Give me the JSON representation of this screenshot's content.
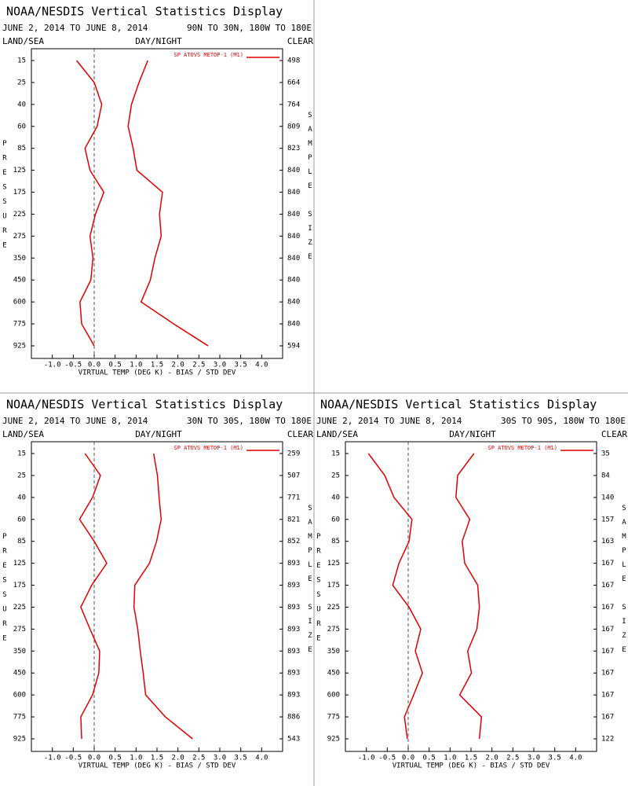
{
  "chart_data": [
    {
      "type": "line",
      "title": "NOAA/NESDIS Vertical Statistics Display",
      "subtitle": "JUNE 2, 2014 TO JUNE 8, 2014",
      "region": "90N TO 30N, 180W TO 180E",
      "land_sea": "LAND/SEA",
      "day_night": "DAY/NIGHT",
      "clear": "CLEAR",
      "y_label": "PRESSURE",
      "y2_label": "SAMPLE SIZE",
      "x_label": "VIRTUAL TEMP (DEG K) - BIAS / STD DEV",
      "categories": [
        15,
        25,
        40,
        60,
        85,
        125,
        175,
        225,
        275,
        350,
        450,
        600,
        775,
        925
      ],
      "sample_size": [
        498,
        664,
        764,
        809,
        823,
        840,
        840,
        840,
        840,
        840,
        840,
        840,
        840,
        594
      ],
      "series": [
        {
          "name": "SP ATOVS METOP-1 (M1)",
          "color": "#e00000",
          "values": [
            -0.42,
            0.0,
            0.18,
            0.07,
            -0.22,
            -0.1,
            0.23,
            0.03,
            -0.1,
            -0.03,
            -0.08,
            -0.34,
            -0.3,
            0.0
          ]
        },
        {
          "color": "#e00000",
          "values": [
            1.28,
            1.07,
            0.89,
            0.81,
            0.93,
            1.02,
            1.63,
            1.56,
            1.6,
            1.45,
            1.34,
            1.12,
            1.9,
            2.72
          ]
        }
      ],
      "xlim": [
        -1.5,
        4.5
      ],
      "xticks": [
        {
          "value": -1,
          "label": "-1.0"
        },
        {
          "value": -0.5,
          "label": "-0.5"
        },
        {
          "value": 0,
          "label": "0.0"
        },
        {
          "value": 0.5,
          "label": "0.5"
        },
        {
          "value": 1,
          "label": "1.0"
        },
        {
          "value": 1.5,
          "label": "1.5"
        },
        {
          "value": 2,
          "label": "2.0"
        },
        {
          "value": 2.5,
          "label": "2.5"
        },
        {
          "value": 3,
          "label": "3.0"
        },
        {
          "value": 3.5,
          "label": "3.5"
        },
        {
          "value": 4,
          "label": "4.0"
        }
      ]
    },
    {
      "type": "line",
      "title": "NOAA/NESDIS Vertical Statistics Display",
      "subtitle": "JUNE 2, 2014 TO JUNE 8, 2014",
      "region": "30N TO 30S, 180W TO 180E",
      "land_sea": "LAND/SEA",
      "day_night": "DAY/NIGHT",
      "clear": "CLEAR",
      "y_label": "PRESSURE",
      "y2_label": "SAMPLE SIZE",
      "x_label": "VIRTUAL TEMP (DEG K) - BIAS / STD DEV",
      "categories": [
        15,
        25,
        40,
        60,
        85,
        125,
        175,
        225,
        275,
        350,
        450,
        600,
        775,
        925
      ],
      "sample_size": [
        259,
        507,
        771,
        821,
        852,
        893,
        893,
        893,
        893,
        893,
        893,
        893,
        886,
        543
      ],
      "series": [
        {
          "name": "SP ATOVS METOP-1 (M1)",
          "color": "#e00000",
          "values": [
            -0.22,
            0.15,
            -0.04,
            -0.35,
            0.0,
            0.3,
            -0.06,
            -0.32,
            -0.1,
            0.13,
            0.11,
            -0.04,
            -0.32,
            -0.3
          ]
        },
        {
          "color": "#e00000",
          "values": [
            1.42,
            1.51,
            1.55,
            1.6,
            1.49,
            1.32,
            0.97,
            0.95,
            1.04,
            1.1,
            1.17,
            1.23,
            1.7,
            2.35
          ]
        }
      ],
      "xlim": [
        -1.5,
        4.5
      ],
      "xticks": [
        {
          "value": -1,
          "label": "-1.0"
        },
        {
          "value": -0.5,
          "label": "-0.5"
        },
        {
          "value": 0,
          "label": "0.0"
        },
        {
          "value": 0.5,
          "label": "0.5"
        },
        {
          "value": 1,
          "label": "1.0"
        },
        {
          "value": 1.5,
          "label": "1.5"
        },
        {
          "value": 2,
          "label": "2.0"
        },
        {
          "value": 2.5,
          "label": "2.5"
        },
        {
          "value": 3,
          "label": "3.0"
        },
        {
          "value": 3.5,
          "label": "3.5"
        },
        {
          "value": 4,
          "label": "4.0"
        }
      ]
    },
    {
      "type": "line",
      "title": "NOAA/NESDIS Vertical Statistics Display",
      "subtitle": "JUNE 2, 2014 TO JUNE 8, 2014",
      "region": "30S TO 90S, 180W TO 180E",
      "land_sea": "LAND/SEA",
      "day_night": "DAY/NIGHT",
      "clear": "CLEAR",
      "y_label": "PRESSURE",
      "y2_label": "SAMPLE SIZE",
      "x_label": "VIRTUAL TEMP (DEG K) - BIAS / STD DEV",
      "categories": [
        15,
        25,
        40,
        60,
        85,
        125,
        175,
        225,
        275,
        350,
        450,
        600,
        775,
        925
      ],
      "sample_size": [
        35,
        84,
        140,
        157,
        163,
        167,
        167,
        167,
        167,
        167,
        167,
        167,
        167,
        122
      ],
      "series": [
        {
          "name": "SP ATOVS METOP-1 (M1)",
          "color": "#e00000",
          "values": [
            -0.95,
            -0.56,
            -0.34,
            0.09,
            0.02,
            -0.22,
            -0.37,
            0.02,
            0.3,
            0.17,
            0.34,
            0.13,
            -0.09,
            -0.02
          ]
        },
        {
          "color": "#e00000",
          "values": [
            1.57,
            1.18,
            1.14,
            1.47,
            1.29,
            1.35,
            1.66,
            1.7,
            1.64,
            1.42,
            1.51,
            1.23,
            1.75,
            1.7
          ]
        }
      ],
      "xlim": [
        -1.5,
        4.5
      ],
      "xticks": [
        {
          "value": -1,
          "label": "-1.0"
        },
        {
          "value": -0.5,
          "label": "-0.5"
        },
        {
          "value": 0,
          "label": "0.0"
        },
        {
          "value": 0.5,
          "label": "0.5"
        },
        {
          "value": 1,
          "label": "1.0"
        },
        {
          "value": 1.5,
          "label": "1.5"
        },
        {
          "value": 2,
          "label": "2.0"
        },
        {
          "value": 2.5,
          "label": "2.5"
        },
        {
          "value": 3,
          "label": "3.0"
        },
        {
          "value": 3.5,
          "label": "3.5"
        },
        {
          "value": 4,
          "label": "4.0"
        }
      ]
    }
  ]
}
